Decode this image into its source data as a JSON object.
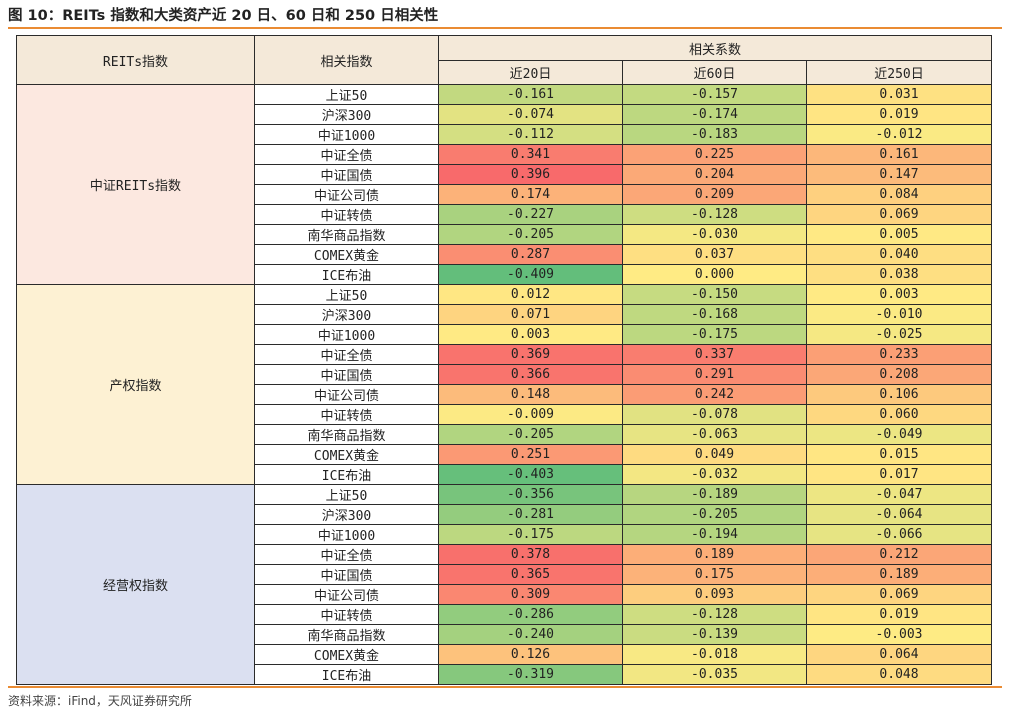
{
  "title": "图 10：REITs 指数和大类资产近 20 日、60 日和 250 日相关性",
  "source": "资料来源：iFind，天风证券研究所",
  "header": {
    "reits_label": "REITs指数",
    "index_label": "相关指数",
    "coef_label": "相关系数",
    "periods": [
      "近20日",
      "近60日",
      "近250日"
    ]
  },
  "groups": [
    {
      "name": "中证REITs指数",
      "color": "#fce8e0",
      "rows": [
        {
          "index": "上证50",
          "values": [
            "-0.161",
            "-0.157",
            "0.031"
          ]
        },
        {
          "index": "沪深300",
          "values": [
            "-0.074",
            "-0.174",
            "0.019"
          ]
        },
        {
          "index": "中证1000",
          "values": [
            "-0.112",
            "-0.183",
            "-0.012"
          ]
        },
        {
          "index": "中证全债",
          "values": [
            "0.341",
            "0.225",
            "0.161"
          ]
        },
        {
          "index": "中证国债",
          "values": [
            "0.396",
            "0.204",
            "0.147"
          ]
        },
        {
          "index": "中证公司债",
          "values": [
            "0.174",
            "0.209",
            "0.084"
          ]
        },
        {
          "index": "中证转债",
          "values": [
            "-0.227",
            "-0.128",
            "0.069"
          ]
        },
        {
          "index": "南华商品指数",
          "values": [
            "-0.205",
            "-0.030",
            "0.005"
          ]
        },
        {
          "index": "COMEX黄金",
          "values": [
            "0.287",
            "0.037",
            "0.040"
          ]
        },
        {
          "index": "ICE布油",
          "values": [
            "-0.409",
            "0.000",
            "0.038"
          ]
        }
      ]
    },
    {
      "name": "产权指数",
      "color": "#fdf1d3",
      "rows": [
        {
          "index": "上证50",
          "values": [
            "0.012",
            "-0.150",
            "0.003"
          ]
        },
        {
          "index": "沪深300",
          "values": [
            "0.071",
            "-0.168",
            "-0.010"
          ]
        },
        {
          "index": "中证1000",
          "values": [
            "0.003",
            "-0.175",
            "-0.025"
          ]
        },
        {
          "index": "中证全债",
          "values": [
            "0.369",
            "0.337",
            "0.233"
          ]
        },
        {
          "index": "中证国债",
          "values": [
            "0.366",
            "0.291",
            "0.208"
          ]
        },
        {
          "index": "中证公司债",
          "values": [
            "0.148",
            "0.242",
            "0.106"
          ]
        },
        {
          "index": "中证转债",
          "values": [
            "-0.009",
            "-0.078",
            "0.060"
          ]
        },
        {
          "index": "南华商品指数",
          "values": [
            "-0.205",
            "-0.063",
            "-0.049"
          ]
        },
        {
          "index": "COMEX黄金",
          "values": [
            "0.251",
            "0.049",
            "0.015"
          ]
        },
        {
          "index": "ICE布油",
          "values": [
            "-0.403",
            "-0.032",
            "0.017"
          ]
        }
      ]
    },
    {
      "name": "经营权指数",
      "color": "#dbe0f1",
      "rows": [
        {
          "index": "上证50",
          "values": [
            "-0.356",
            "-0.189",
            "-0.047"
          ]
        },
        {
          "index": "沪深300",
          "values": [
            "-0.281",
            "-0.205",
            "-0.064"
          ]
        },
        {
          "index": "中证1000",
          "values": [
            "-0.175",
            "-0.194",
            "-0.066"
          ]
        },
        {
          "index": "中证全债",
          "values": [
            "0.378",
            "0.189",
            "0.212"
          ]
        },
        {
          "index": "中证国债",
          "values": [
            "0.365",
            "0.175",
            "0.189"
          ]
        },
        {
          "index": "中证公司债",
          "values": [
            "0.309",
            "0.093",
            "0.069"
          ]
        },
        {
          "index": "中证转债",
          "values": [
            "-0.286",
            "-0.128",
            "0.019"
          ]
        },
        {
          "index": "南华商品指数",
          "values": [
            "-0.240",
            "-0.139",
            "-0.003"
          ]
        },
        {
          "index": "COMEX黄金",
          "values": [
            "0.126",
            "-0.018",
            "0.064"
          ]
        },
        {
          "index": "ICE布油",
          "values": [
            "-0.319",
            "-0.035",
            "0.048"
          ]
        }
      ]
    }
  ],
  "heatmap_colors": {
    "negative": "#63be7b",
    "neutral": "#ffeb84",
    "positive": "#f8696b"
  },
  "heatmap_range": [
    -0.41,
    0.4
  ]
}
